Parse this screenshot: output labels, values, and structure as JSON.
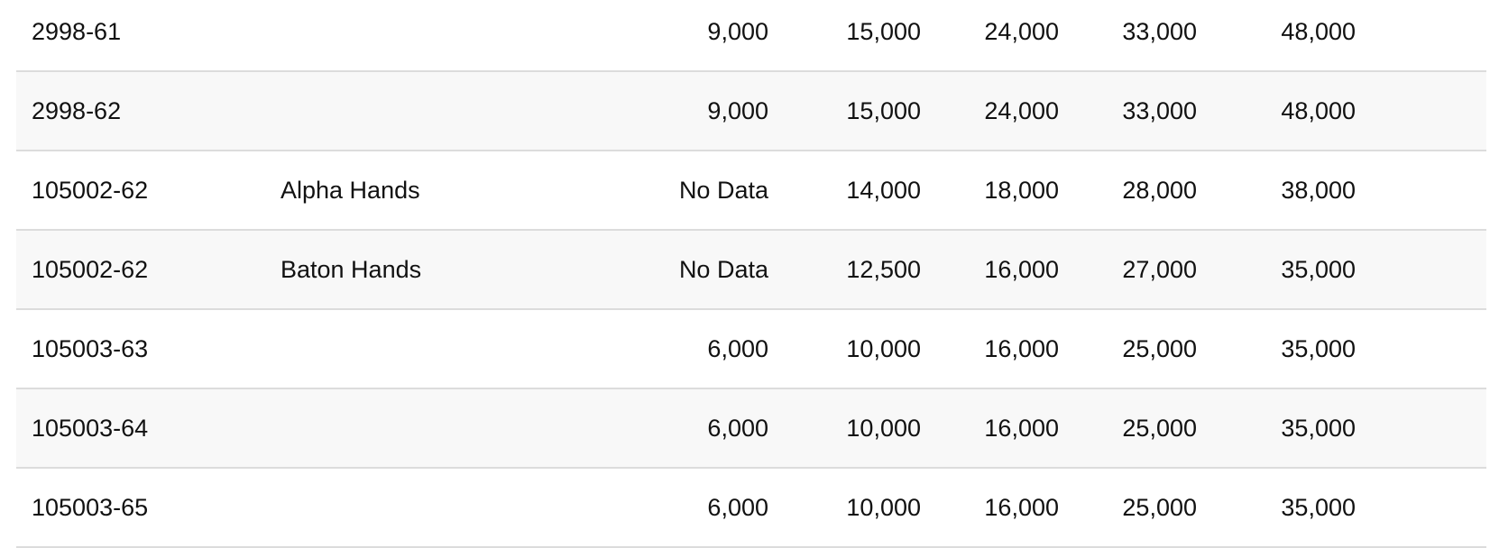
{
  "rows": [
    {
      "part": "2998-61",
      "variant": "",
      "values": [
        "9,000",
        "15,000",
        "24,000",
        "33,000",
        "48,000"
      ]
    },
    {
      "part": "2998-62",
      "variant": "",
      "values": [
        "9,000",
        "15,000",
        "24,000",
        "33,000",
        "48,000"
      ]
    },
    {
      "part": "105002-62",
      "variant": "Alpha Hands",
      "values": [
        "No Data",
        "14,000",
        "18,000",
        "28,000",
        "38,000"
      ]
    },
    {
      "part": "105002-62",
      "variant": "Baton Hands",
      "values": [
        "No Data",
        "12,500",
        "16,000",
        "27,000",
        "35,000"
      ]
    },
    {
      "part": "105003-63",
      "variant": "",
      "values": [
        "6,000",
        "10,000",
        "16,000",
        "25,000",
        "35,000"
      ]
    },
    {
      "part": "105003-64",
      "variant": "",
      "values": [
        "6,000",
        "10,000",
        "16,000",
        "25,000",
        "35,000"
      ]
    },
    {
      "part": "105003-65",
      "variant": "",
      "values": [
        "6,000",
        "10,000",
        "16,000",
        "25,000",
        "35,000"
      ]
    }
  ],
  "colors": {
    "alt_row": "#f8f8f8",
    "border": "#dcdcdc"
  }
}
